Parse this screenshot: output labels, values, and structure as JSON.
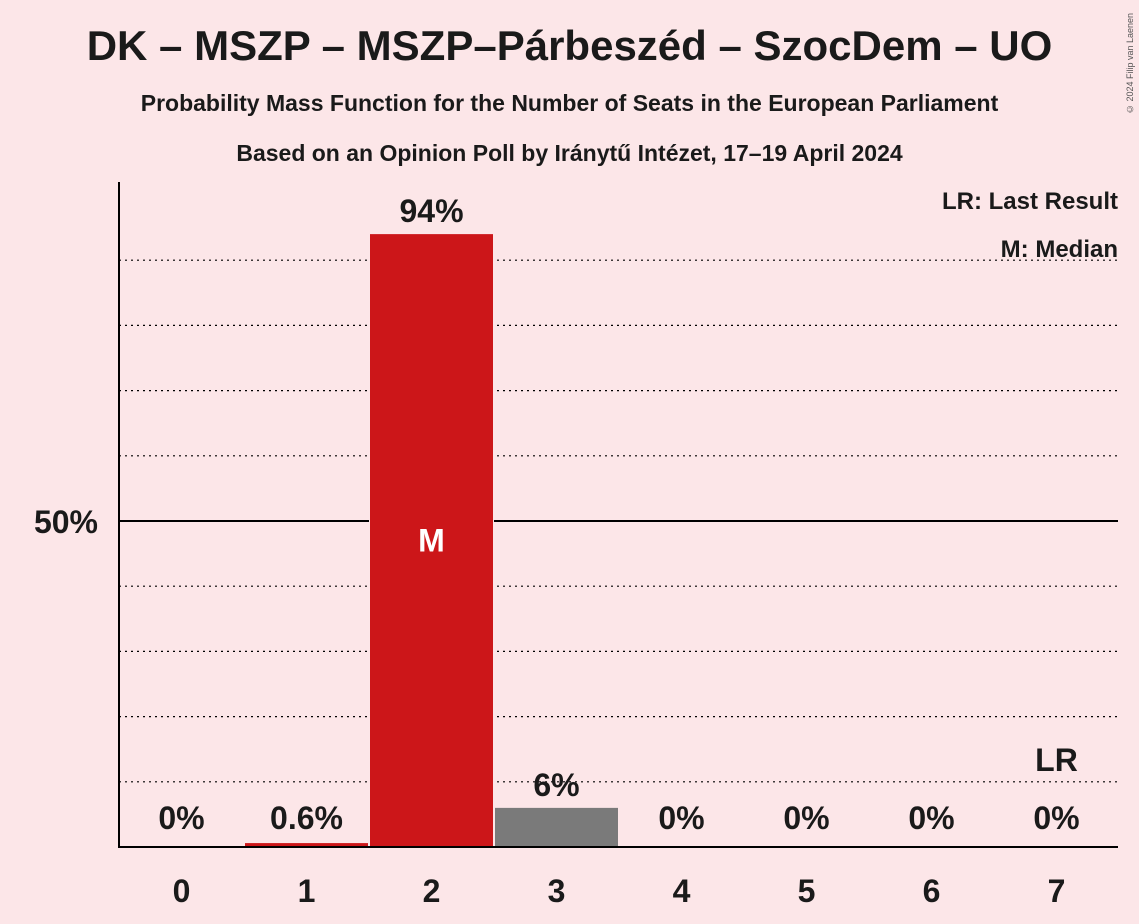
{
  "title": "DK – MSZP – MSZP–Párbeszéd – SzocDem – UO",
  "subtitle1": "Probability Mass Function for the Number of Seats in the European Parliament",
  "subtitle2": "Based on an Opinion Poll by Iránytű Intézet, 17–19 April 2024",
  "copyright": "© 2024 Filip van Laenen",
  "legend": {
    "last_result": "LR: Last Result",
    "median": "M: Median"
  },
  "colors": {
    "background": "#fce6e8",
    "median_bar": "#cc1619",
    "other_bar": "#7a7a7a",
    "axis": "#000000"
  },
  "chart_data": {
    "type": "bar",
    "categories": [
      "0",
      "1",
      "2",
      "3",
      "4",
      "5",
      "6",
      "7"
    ],
    "values": [
      0,
      0.6,
      94,
      6,
      0,
      0,
      0,
      0
    ],
    "labels": [
      "0%",
      "0.6%",
      "94%",
      "6%",
      "0%",
      "0%",
      "0%",
      "0%"
    ],
    "ylim": [
      0,
      100
    ],
    "ytick_label": "50%",
    "ytick_value": 50,
    "gridlines": [
      10,
      20,
      30,
      40,
      60,
      70,
      80,
      90
    ],
    "median_seat": "2",
    "median_marker": "M",
    "last_result_seat": "7",
    "last_result_marker": "LR",
    "legend_position": "top-right"
  }
}
